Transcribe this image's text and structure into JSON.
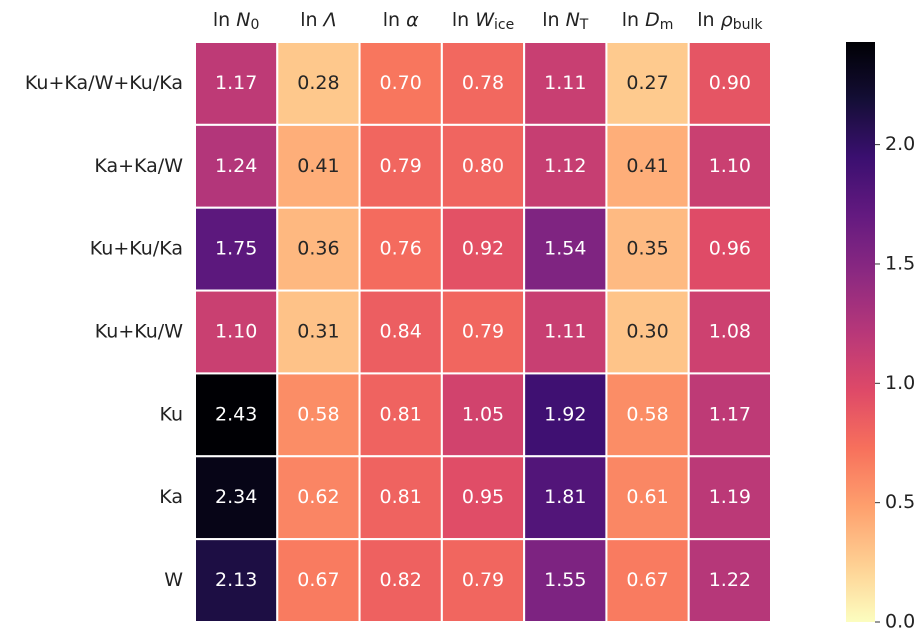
{
  "chart_data": {
    "type": "heatmap",
    "columns": [
      {
        "prefix": "ln",
        "symbol": "N",
        "sub": "0"
      },
      {
        "prefix": "ln",
        "symbol": "Λ"
      },
      {
        "prefix": "ln",
        "symbol": "α"
      },
      {
        "prefix": "ln",
        "symbol": "W",
        "sub": "ice"
      },
      {
        "prefix": "ln",
        "symbol": "N",
        "sub": "T"
      },
      {
        "prefix": "ln",
        "symbol": "D",
        "sub": "m"
      },
      {
        "prefix": "ln",
        "symbol": "ρ",
        "sub": "bulk"
      }
    ],
    "rows": [
      "Ku+Ka/W+Ku/Ka",
      "Ka+Ka/W",
      "Ku+Ku/Ka",
      "Ku+Ku/W",
      "Ku",
      "Ka",
      "W"
    ],
    "values": [
      [
        1.17,
        0.28,
        0.7,
        0.78,
        1.11,
        0.27,
        0.9
      ],
      [
        1.24,
        0.41,
        0.79,
        0.8,
        1.12,
        0.41,
        1.1
      ],
      [
        1.75,
        0.36,
        0.76,
        0.92,
        1.54,
        0.35,
        0.96
      ],
      [
        1.1,
        0.31,
        0.84,
        0.79,
        1.11,
        0.3,
        1.08
      ],
      [
        2.43,
        0.58,
        0.81,
        1.05,
        1.92,
        0.58,
        1.17
      ],
      [
        2.34,
        0.62,
        0.81,
        0.95,
        1.81,
        0.61,
        1.19
      ],
      [
        2.13,
        0.67,
        0.82,
        0.79,
        1.55,
        0.67,
        1.22
      ]
    ],
    "value_labels": [
      [
        "1.17",
        "0.28",
        "0.70",
        "0.78",
        "1.11",
        "0.27",
        "0.90"
      ],
      [
        "1.24",
        "0.41",
        "0.79",
        "0.80",
        "1.12",
        "0.41",
        "1.10"
      ],
      [
        "1.75",
        "0.36",
        "0.76",
        "0.92",
        "1.54",
        "0.35",
        "0.96"
      ],
      [
        "1.10",
        "0.31",
        "0.84",
        "0.79",
        "1.11",
        "0.30",
        "1.08"
      ],
      [
        "2.43",
        "0.58",
        "0.81",
        "1.05",
        "1.92",
        "0.58",
        "1.17"
      ],
      [
        "2.34",
        "0.62",
        "0.81",
        "0.95",
        "1.81",
        "0.61",
        "1.19"
      ],
      [
        "2.13",
        "0.67",
        "0.82",
        "0.79",
        "1.55",
        "0.67",
        "1.22"
      ]
    ],
    "colormap": "magma_r",
    "clim": [
      0,
      2.43
    ],
    "cticks": [
      {
        "value": 0,
        "label": "0.0"
      },
      {
        "value": 0.5,
        "label": "0.5"
      },
      {
        "value": 1,
        "label": "1.0"
      },
      {
        "value": 1.5,
        "label": "1.5"
      },
      {
        "value": 2,
        "label": "2.0"
      }
    ]
  }
}
